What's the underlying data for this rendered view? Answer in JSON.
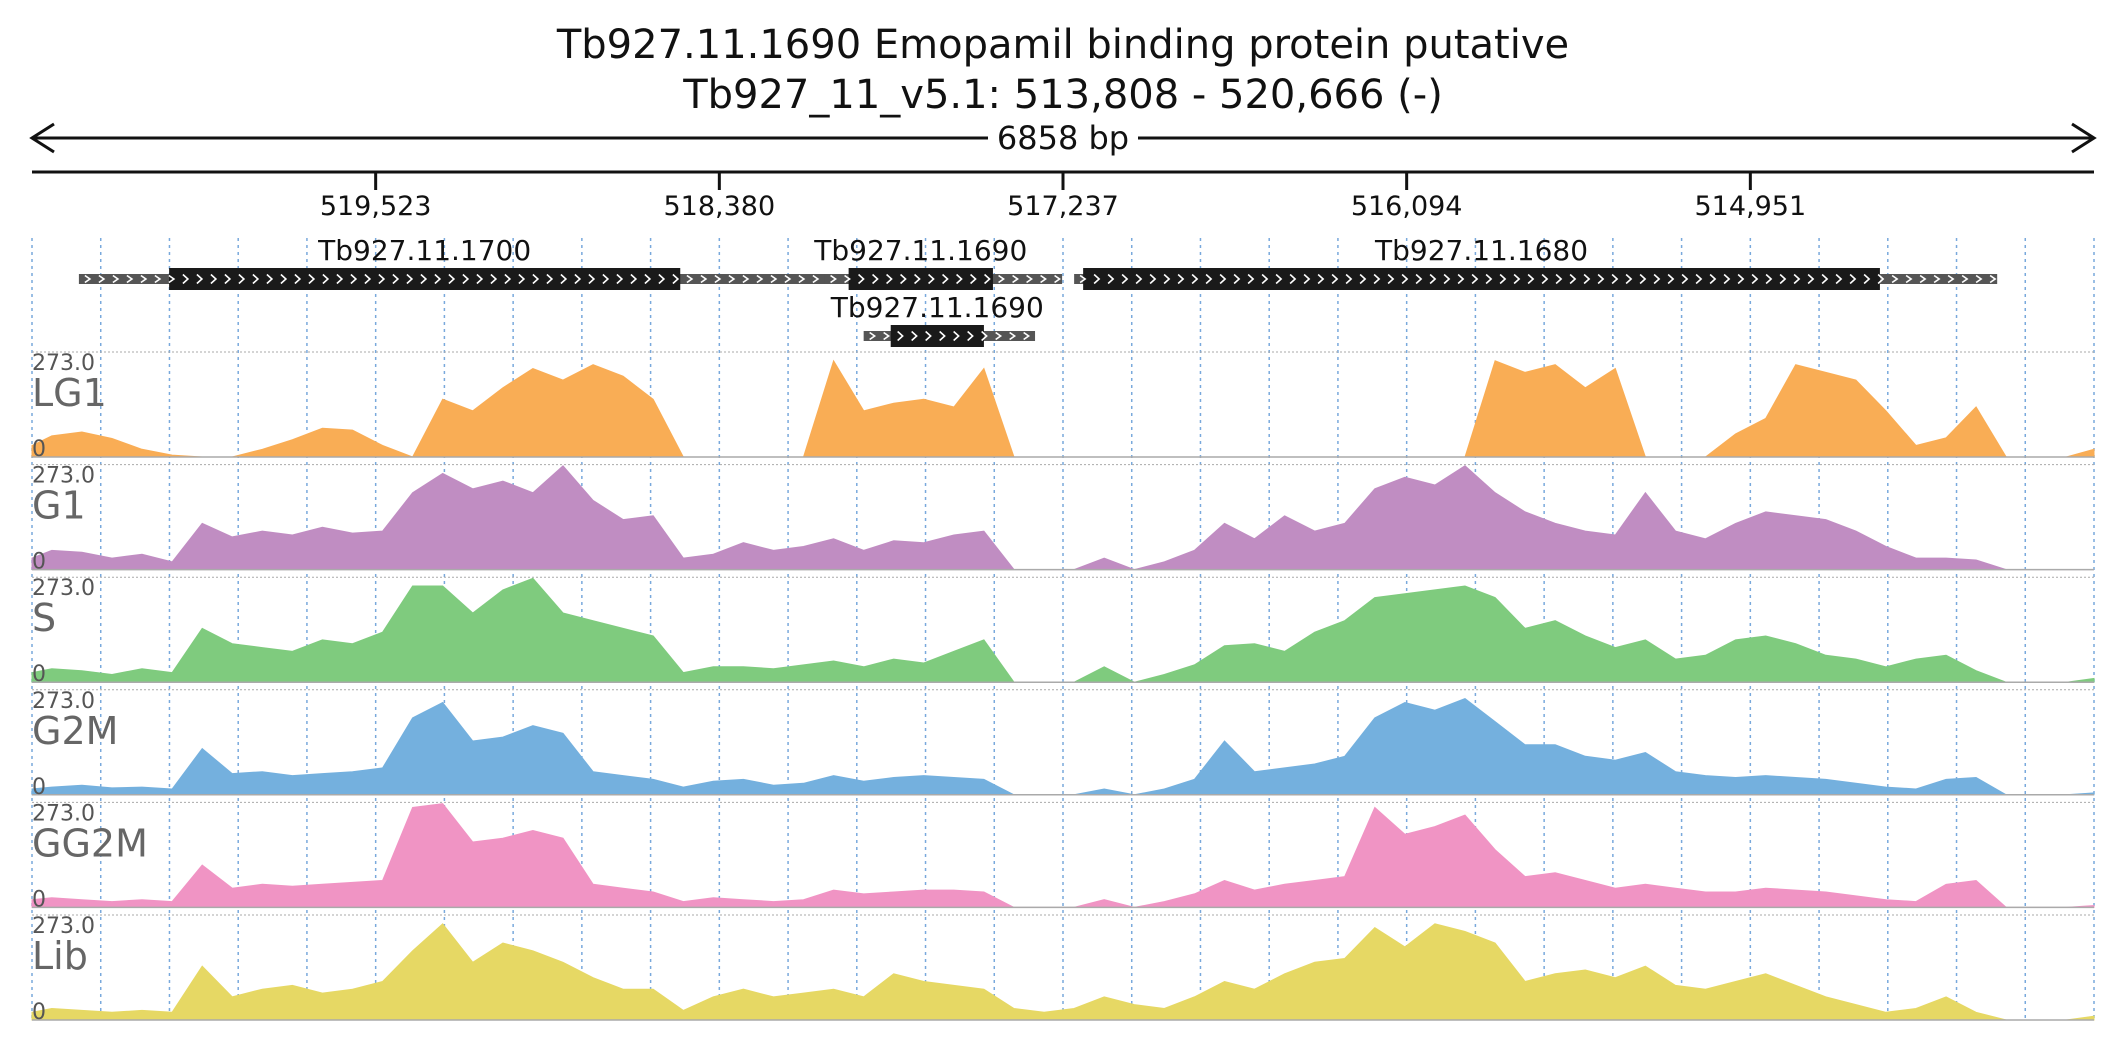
{
  "chart_data": {
    "type": "area",
    "title": "Tb927.11.1690  Emopamil binding protein  putative",
    "subtitle": "Tb927_11_v5.1: 513,808 - 520,666 (-)",
    "span_label": "6858 bp",
    "xlim": [
      520666,
      513808
    ],
    "reversed": true,
    "tick_labels": [
      "519,523",
      "518,380",
      "517,237",
      "516,094",
      "514,951"
    ],
    "ticks": [
      519523,
      518380,
      517237,
      516094,
      514951
    ],
    "genes": [
      {
        "name": "Tb927.11.1700",
        "utr": [
          520510,
          517460
        ],
        "cds": [
          520210,
          518510
        ],
        "row": 0
      },
      {
        "name": "Tb927.11.1690",
        "utr": [
          518030,
          517240
        ],
        "cds": [
          517950,
          517470
        ],
        "row": 0
      },
      {
        "name": "Tb927.11.1690",
        "utr": [
          517900,
          517330
        ],
        "cds": [
          517810,
          517500
        ],
        "row": 1
      },
      {
        "name": "Tb927.11.1680",
        "utr": [
          517200,
          514130
        ],
        "cds": [
          517170,
          514520
        ],
        "row": 0
      }
    ],
    "y_max_label": "273.0",
    "y_min_label": "0",
    "ylim": [
      0,
      273
    ],
    "x": [
      520666,
      520600,
      520500,
      520400,
      520300,
      520200,
      520100,
      520000,
      519900,
      519800,
      519700,
      519600,
      519500,
      519400,
      519300,
      519200,
      519100,
      519000,
      518900,
      518800,
      518700,
      518600,
      518500,
      518400,
      518300,
      518200,
      518100,
      518000,
      517900,
      517800,
      517700,
      517600,
      517500,
      517400,
      517300,
      517200,
      517100,
      517000,
      516900,
      516800,
      516700,
      516600,
      516500,
      516400,
      516300,
      516200,
      516100,
      516000,
      515900,
      515800,
      515700,
      515600,
      515500,
      515400,
      515300,
      515200,
      515100,
      515000,
      514900,
      514800,
      514700,
      514600,
      514500,
      514400,
      514300,
      514200,
      514100,
      514000,
      513900,
      513808
    ],
    "series": [
      {
        "name": "LG1",
        "color": "#f9ad55",
        "values": [
          30,
          55,
          65,
          48,
          20,
          5,
          0,
          0,
          20,
          45,
          75,
          70,
          30,
          0,
          150,
          120,
          180,
          230,
          200,
          240,
          210,
          150,
          0,
          0,
          0,
          0,
          0,
          250,
          120,
          140,
          150,
          130,
          230,
          0,
          0,
          0,
          0,
          0,
          0,
          0,
          0,
          0,
          0,
          0,
          0,
          0,
          0,
          0,
          0,
          250,
          220,
          240,
          180,
          230,
          0,
          0,
          0,
          60,
          100,
          240,
          220,
          200,
          120,
          30,
          50,
          130,
          0,
          0,
          0,
          20
        ]
      },
      {
        "name": "G1",
        "color": "#c08dc2",
        "values": [
          30,
          50,
          45,
          30,
          40,
          20,
          120,
          85,
          100,
          90,
          110,
          95,
          100,
          200,
          250,
          210,
          230,
          200,
          270,
          180,
          130,
          140,
          30,
          40,
          70,
          50,
          60,
          80,
          50,
          75,
          70,
          90,
          100,
          0,
          0,
          0,
          30,
          0,
          20,
          50,
          120,
          80,
          140,
          100,
          120,
          210,
          240,
          220,
          270,
          200,
          150,
          120,
          100,
          90,
          200,
          100,
          80,
          120,
          150,
          140,
          130,
          100,
          60,
          30,
          30,
          25,
          0,
          0,
          0,
          0
        ]
      },
      {
        "name": "S",
        "color": "#7fcb7e",
        "values": [
          25,
          35,
          30,
          20,
          35,
          25,
          140,
          100,
          90,
          80,
          110,
          100,
          130,
          250,
          250,
          180,
          240,
          270,
          180,
          160,
          140,
          120,
          25,
          40,
          40,
          35,
          45,
          55,
          40,
          60,
          50,
          80,
          110,
          0,
          0,
          0,
          40,
          0,
          20,
          45,
          95,
          100,
          80,
          130,
          160,
          220,
          230,
          240,
          250,
          220,
          140,
          160,
          120,
          90,
          110,
          60,
          70,
          110,
          120,
          100,
          70,
          60,
          40,
          60,
          70,
          30,
          0,
          0,
          0,
          10
        ]
      },
      {
        "name": "G2M",
        "color": "#74b0de",
        "values": [
          15,
          20,
          25,
          18,
          20,
          15,
          120,
          55,
          60,
          50,
          55,
          60,
          70,
          200,
          240,
          140,
          150,
          180,
          160,
          60,
          50,
          40,
          20,
          35,
          40,
          25,
          30,
          50,
          35,
          45,
          50,
          45,
          40,
          0,
          0,
          0,
          15,
          0,
          15,
          40,
          140,
          60,
          70,
          80,
          100,
          200,
          240,
          220,
          250,
          190,
          130,
          130,
          100,
          90,
          110,
          60,
          50,
          45,
          50,
          45,
          40,
          30,
          20,
          15,
          40,
          45,
          0,
          0,
          0,
          5
        ]
      },
      {
        "name": "GG2M",
        "color": "#f094c4",
        "values": [
          20,
          25,
          20,
          15,
          20,
          15,
          110,
          50,
          60,
          55,
          60,
          65,
          70,
          260,
          270,
          170,
          180,
          200,
          180,
          60,
          50,
          40,
          15,
          25,
          20,
          15,
          20,
          45,
          35,
          40,
          45,
          45,
          40,
          0,
          0,
          0,
          20,
          0,
          15,
          35,
          70,
          45,
          60,
          70,
          80,
          260,
          190,
          210,
          240,
          150,
          80,
          90,
          70,
          50,
          60,
          50,
          40,
          40,
          50,
          45,
          40,
          30,
          20,
          15,
          60,
          70,
          0,
          0,
          0,
          5
        ]
      },
      {
        "name": "Lib",
        "color": "#e6d864",
        "values": [
          20,
          30,
          25,
          20,
          25,
          20,
          140,
          60,
          80,
          90,
          70,
          80,
          100,
          180,
          250,
          150,
          200,
          180,
          150,
          110,
          80,
          80,
          25,
          60,
          80,
          60,
          70,
          80,
          60,
          120,
          100,
          90,
          80,
          30,
          20,
          30,
          60,
          40,
          30,
          60,
          100,
          80,
          120,
          150,
          160,
          240,
          190,
          250,
          230,
          200,
          100,
          120,
          130,
          110,
          140,
          90,
          80,
          100,
          120,
          90,
          60,
          40,
          20,
          30,
          60,
          20,
          0,
          0,
          0,
          10
        ]
      }
    ]
  }
}
